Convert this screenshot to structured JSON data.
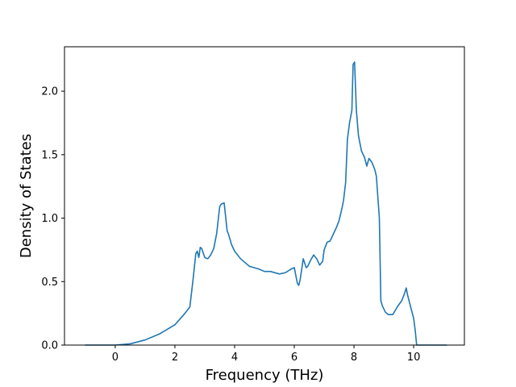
{
  "chart_data": {
    "type": "line",
    "title": "",
    "xlabel": "Frequency (THz)",
    "ylabel": "Density of States",
    "xlim": [
      -1.7,
      11.7
    ],
    "ylim": [
      0.0,
      2.35
    ],
    "xticks": [
      0,
      2,
      4,
      6,
      8,
      10
    ],
    "xtick_labels": [
      "0",
      "2",
      "4",
      "6",
      "8",
      "10"
    ],
    "yticks": [
      0.0,
      0.5,
      1.0,
      1.5,
      2.0
    ],
    "ytick_labels": [
      "0.0",
      "0.5",
      "1.0",
      "1.5",
      "2.0"
    ],
    "grid": false,
    "legend": "none",
    "series": [
      {
        "color": "#1f77b4",
        "x": [
          -1.0,
          -0.5,
          0.0,
          0.5,
          1.0,
          1.5,
          2.0,
          2.3,
          2.5,
          2.6,
          2.7,
          2.75,
          2.8,
          2.85,
          2.9,
          3.0,
          3.1,
          3.2,
          3.3,
          3.4,
          3.5,
          3.55,
          3.65,
          3.75,
          3.8,
          3.9,
          4.0,
          4.2,
          4.5,
          4.8,
          5.0,
          5.2,
          5.5,
          5.7,
          5.9,
          6.0,
          6.1,
          6.15,
          6.2,
          6.3,
          6.4,
          6.45,
          6.55,
          6.65,
          6.75,
          6.85,
          6.95,
          7.0,
          7.1,
          7.2,
          7.3,
          7.4,
          7.5,
          7.6,
          7.65,
          7.72,
          7.78,
          7.85,
          7.93,
          7.97,
          8.02,
          8.08,
          8.15,
          8.25,
          8.35,
          8.43,
          8.5,
          8.6,
          8.7,
          8.75,
          8.85,
          8.9,
          8.95,
          9.05,
          9.15,
          9.3,
          9.45,
          9.6,
          9.7,
          9.75,
          9.8,
          9.9,
          10.0,
          10.05,
          10.1,
          10.2,
          10.5,
          11.1
        ],
        "y": [
          0.0,
          0.0,
          0.0,
          0.01,
          0.04,
          0.09,
          0.16,
          0.24,
          0.3,
          0.5,
          0.72,
          0.74,
          0.69,
          0.77,
          0.76,
          0.69,
          0.68,
          0.71,
          0.76,
          0.88,
          1.09,
          1.11,
          1.12,
          0.9,
          0.87,
          0.79,
          0.74,
          0.68,
          0.62,
          0.6,
          0.58,
          0.58,
          0.56,
          0.57,
          0.6,
          0.61,
          0.49,
          0.47,
          0.52,
          0.68,
          0.61,
          0.62,
          0.67,
          0.71,
          0.68,
          0.63,
          0.66,
          0.75,
          0.81,
          0.82,
          0.87,
          0.92,
          0.98,
          1.08,
          1.14,
          1.28,
          1.62,
          1.75,
          1.85,
          2.21,
          2.23,
          1.85,
          1.65,
          1.53,
          1.48,
          1.41,
          1.47,
          1.44,
          1.38,
          1.33,
          1.0,
          0.35,
          0.31,
          0.26,
          0.24,
          0.24,
          0.3,
          0.35,
          0.41,
          0.45,
          0.39,
          0.3,
          0.21,
          0.12,
          0.0,
          0.0,
          0.0,
          0.0
        ]
      }
    ]
  }
}
